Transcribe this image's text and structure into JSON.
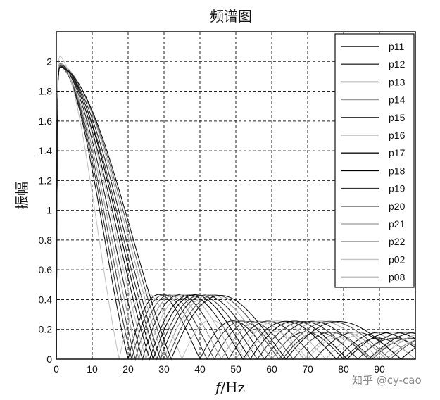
{
  "chart_data": {
    "type": "line",
    "title": "频谱图",
    "ylabel": "振幅",
    "xlabel": {
      "italic": "f",
      "rest": "/Hz"
    },
    "xlim": [
      0,
      100
    ],
    "ylim": [
      0,
      2.2
    ],
    "xticks": [
      0,
      10,
      20,
      30,
      40,
      50,
      60,
      70,
      80,
      90
    ],
    "yticks": [
      0,
      0.2,
      0.4,
      0.6,
      0.8,
      1,
      1.2,
      1.4,
      1.6,
      1.8,
      2
    ],
    "ytick_labels": [
      "0",
      "0.2",
      "0.4",
      "0.6",
      "0.8",
      "1",
      "1.2",
      "1.4",
      "1.6",
      "1.8",
      "2"
    ],
    "grid": true,
    "legend_position": "top-right",
    "series": [
      {
        "name": "p11",
        "color": "#111111",
        "first_zero": 20.0,
        "peak": 2.0
      },
      {
        "name": "p12",
        "color": "#333333",
        "first_zero": 21.0,
        "peak": 1.99
      },
      {
        "name": "p13",
        "color": "#444444",
        "first_zero": 22.0,
        "peak": 1.98
      },
      {
        "name": "p14",
        "color": "#999999",
        "first_zero": 23.0,
        "peak": 1.98
      },
      {
        "name": "p15",
        "color": "#222222",
        "first_zero": 24.0,
        "peak": 1.99
      },
      {
        "name": "p16",
        "color": "#bbbbbb",
        "first_zero": 25.0,
        "peak": 2.0
      },
      {
        "name": "p17",
        "color": "#111111",
        "first_zero": 26.0,
        "peak": 1.98
      },
      {
        "name": "p18",
        "color": "#000000",
        "first_zero": 27.0,
        "peak": 1.99
      },
      {
        "name": "p19",
        "color": "#333333",
        "first_zero": 28.0,
        "peak": 1.97
      },
      {
        "name": "p20",
        "color": "#222222",
        "first_zero": 29.0,
        "peak": 1.98
      },
      {
        "name": "p21",
        "color": "#aaaaaa",
        "first_zero": 30.0,
        "peak": 1.99
      },
      {
        "name": "p22",
        "color": "#555555",
        "first_zero": 31.0,
        "peak": 1.98
      },
      {
        "name": "p02",
        "color": "#c4c4c4",
        "first_zero": 17.5,
        "peak": 2.05
      },
      {
        "name": "p08",
        "color": "#111111",
        "first_zero": 32.0,
        "peak": 1.97
      }
    ]
  },
  "watermark": "知乎 @cy-cao"
}
